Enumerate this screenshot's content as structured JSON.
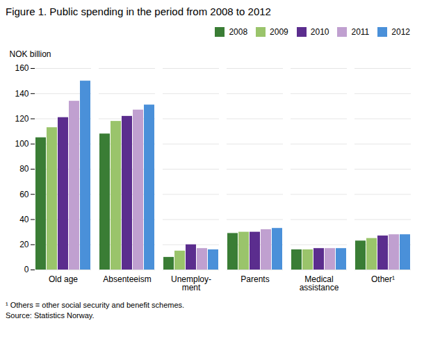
{
  "chart_data": {
    "type": "bar",
    "title": "Figure 1. Public spending in the period from 2008 to 2012",
    "ylabel": "NOK billion",
    "categories": [
      "Old age",
      "Absenteeism",
      "Unemploy-\nment",
      "Parents",
      "Medical\nassistance",
      "Other¹"
    ],
    "series": [
      {
        "name": "2008",
        "color": "#3a7d35",
        "values": [
          105,
          108,
          10,
          29,
          16,
          23
        ]
      },
      {
        "name": "2009",
        "color": "#9ac46b",
        "values": [
          113,
          118,
          15,
          30,
          16,
          25
        ]
      },
      {
        "name": "2010",
        "color": "#5b2d8e",
        "values": [
          121,
          122,
          20,
          30,
          17,
          27
        ]
      },
      {
        "name": "2011",
        "color": "#c0a0d0",
        "values": [
          134,
          127,
          17,
          32,
          17,
          28
        ]
      },
      {
        "name": "2012",
        "color": "#4a90d9",
        "values": [
          150,
          131,
          16,
          33,
          17,
          28
        ]
      }
    ],
    "ylim": [
      0,
      160
    ],
    "yticks": [
      0,
      20,
      40,
      60,
      80,
      100,
      120,
      140,
      160
    ],
    "grid": true,
    "legend": "upper right",
    "annotations": [
      "¹ Others = other social security and benefit schemes.",
      "Source: Statistics Norway."
    ]
  }
}
